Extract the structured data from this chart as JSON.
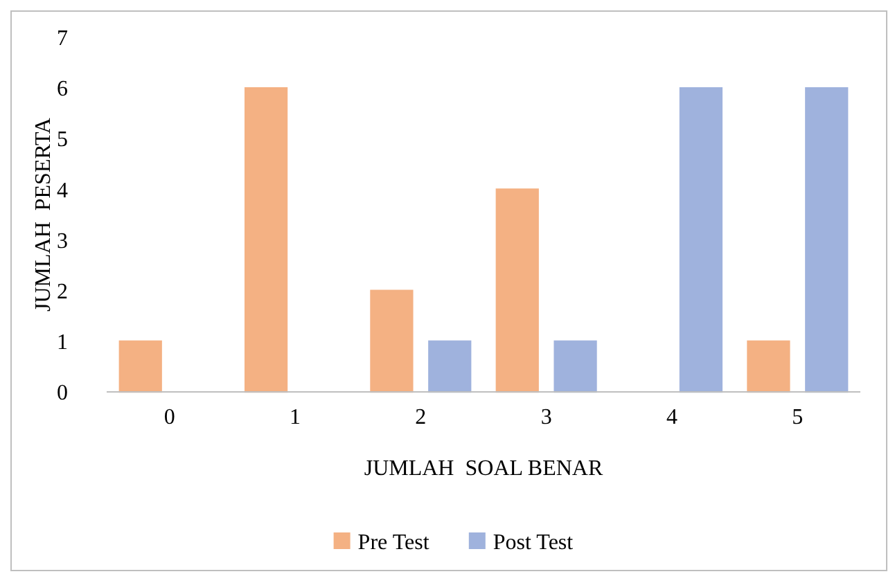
{
  "chart_data": {
    "type": "bar",
    "xlabel": "JUMLAH  SOAL BENAR",
    "ylabel": "JUMLAH  PESERTA",
    "categories": [
      "0",
      "1",
      "2",
      "3",
      "4",
      "5"
    ],
    "series": [
      {
        "name": "Pre Test",
        "color": "#f4b183",
        "values": [
          1,
          6,
          2,
          4,
          0,
          1
        ]
      },
      {
        "name": "Post Test",
        "color": "#9fb2dd",
        "values": [
          0,
          0,
          1,
          1,
          6,
          6
        ]
      }
    ],
    "ylim": [
      0,
      7
    ],
    "yticks": [
      0,
      1,
      2,
      3,
      4,
      5,
      6,
      7
    ],
    "grid": false,
    "legend": "bottom"
  }
}
